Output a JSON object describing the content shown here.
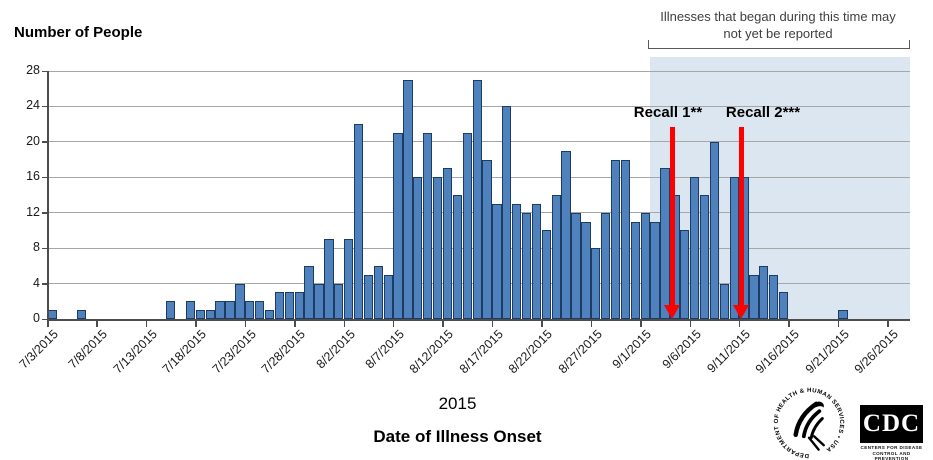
{
  "chart": {
    "y_axis_title": "Number of People",
    "x_axis_title": "Date of Illness Onset",
    "x_year": "2015",
    "note": "Illnesses that began during this time may not yet be reported",
    "recall_annotations": [
      {
        "label": "Recall 1**",
        "date": "9/4/2015"
      },
      {
        "label": "Recall 2***",
        "date": "9/11/2015"
      }
    ],
    "colors": {
      "bar_fill": "#4f81bd",
      "bar_border": "#1c3c63",
      "shade": "#dce6f1",
      "arrow_red": "#fe0000",
      "gridline": "#a6a6a6"
    }
  },
  "chart_data": {
    "type": "bar",
    "title": "Number of People",
    "xlabel": "Date of Illness Onset",
    "ylabel": "Number of People",
    "ylim": [
      0,
      28
    ],
    "yticks": [
      0,
      4,
      8,
      12,
      16,
      20,
      24,
      28
    ],
    "grid": "horizontal",
    "x_tick_labels": [
      "7/3/2015",
      "7/8/2015",
      "7/13/2015",
      "7/18/2015",
      "7/23/2015",
      "7/28/2015",
      "8/2/2015",
      "8/7/2015",
      "8/12/2015",
      "8/17/2015",
      "8/22/2015",
      "8/27/2015",
      "9/1/2015",
      "9/6/2015",
      "9/11/2015",
      "9/16/2015",
      "9/21/2015",
      "9/26/2015"
    ],
    "categories": [
      "7/3/2015",
      "7/4/2015",
      "7/5/2015",
      "7/6/2015",
      "7/7/2015",
      "7/8/2015",
      "7/9/2015",
      "7/10/2015",
      "7/11/2015",
      "7/12/2015",
      "7/13/2015",
      "7/14/2015",
      "7/15/2015",
      "7/16/2015",
      "7/17/2015",
      "7/18/2015",
      "7/19/2015",
      "7/20/2015",
      "7/21/2015",
      "7/22/2015",
      "7/23/2015",
      "7/24/2015",
      "7/25/2015",
      "7/26/2015",
      "7/27/2015",
      "7/28/2015",
      "7/29/2015",
      "7/30/2015",
      "7/31/2015",
      "8/1/2015",
      "8/2/2015",
      "8/3/2015",
      "8/4/2015",
      "8/5/2015",
      "8/6/2015",
      "8/7/2015",
      "8/8/2015",
      "8/9/2015",
      "8/10/2015",
      "8/11/2015",
      "8/12/2015",
      "8/13/2015",
      "8/14/2015",
      "8/15/2015",
      "8/16/2015",
      "8/17/2015",
      "8/18/2015",
      "8/19/2015",
      "8/20/2015",
      "8/21/2015",
      "8/22/2015",
      "8/23/2015",
      "8/24/2015",
      "8/25/2015",
      "8/26/2015",
      "8/27/2015",
      "8/28/2015",
      "8/29/2015",
      "8/30/2015",
      "8/31/2015",
      "9/1/2015",
      "9/2/2015",
      "9/3/2015",
      "9/4/2015",
      "9/5/2015",
      "9/6/2015",
      "9/7/2015",
      "9/8/2015",
      "9/9/2015",
      "9/10/2015",
      "9/11/2015",
      "9/12/2015",
      "9/13/2015",
      "9/14/2015",
      "9/15/2015",
      "9/16/2015",
      "9/17/2015",
      "9/18/2015",
      "9/19/2015",
      "9/20/2015",
      "9/21/2015",
      "9/22/2015",
      "9/23/2015",
      "9/24/2015",
      "9/25/2015",
      "9/26/2015"
    ],
    "values": [
      1,
      0,
      0,
      1,
      0,
      0,
      0,
      0,
      0,
      0,
      0,
      0,
      2,
      0,
      2,
      1,
      1,
      2,
      2,
      4,
      2,
      2,
      1,
      3,
      3,
      3,
      6,
      4,
      9,
      4,
      9,
      22,
      5,
      6,
      5,
      21,
      27,
      16,
      21,
      16,
      17,
      14,
      21,
      27,
      18,
      13,
      24,
      13,
      12,
      13,
      10,
      14,
      19,
      12,
      11,
      8,
      12,
      18,
      18,
      11,
      12,
      11,
      17,
      14,
      10,
      16,
      14,
      20,
      4,
      16,
      16,
      5,
      6,
      5,
      3,
      0,
      0,
      0,
      0,
      0,
      1,
      0,
      0,
      0,
      0,
      0
    ],
    "shaded_region": {
      "start_date": "9/2/2015",
      "end_date": "9/26/2015",
      "note": "Illnesses that began during this time may not yet be reported"
    },
    "annotations": [
      {
        "label": "Recall 1**",
        "date": "9/4/2015"
      },
      {
        "label": "Recall 2***",
        "date": "9/11/2015"
      }
    ]
  },
  "logos": {
    "hhs_circular_text": "DEPARTMENT OF HEALTH & HUMAN SERVICES • USA",
    "cdc_acronym": "CDC",
    "cdc_line1": "CENTERS FOR DISEASE",
    "cdc_line2": "CONTROL AND PREVENTION"
  }
}
